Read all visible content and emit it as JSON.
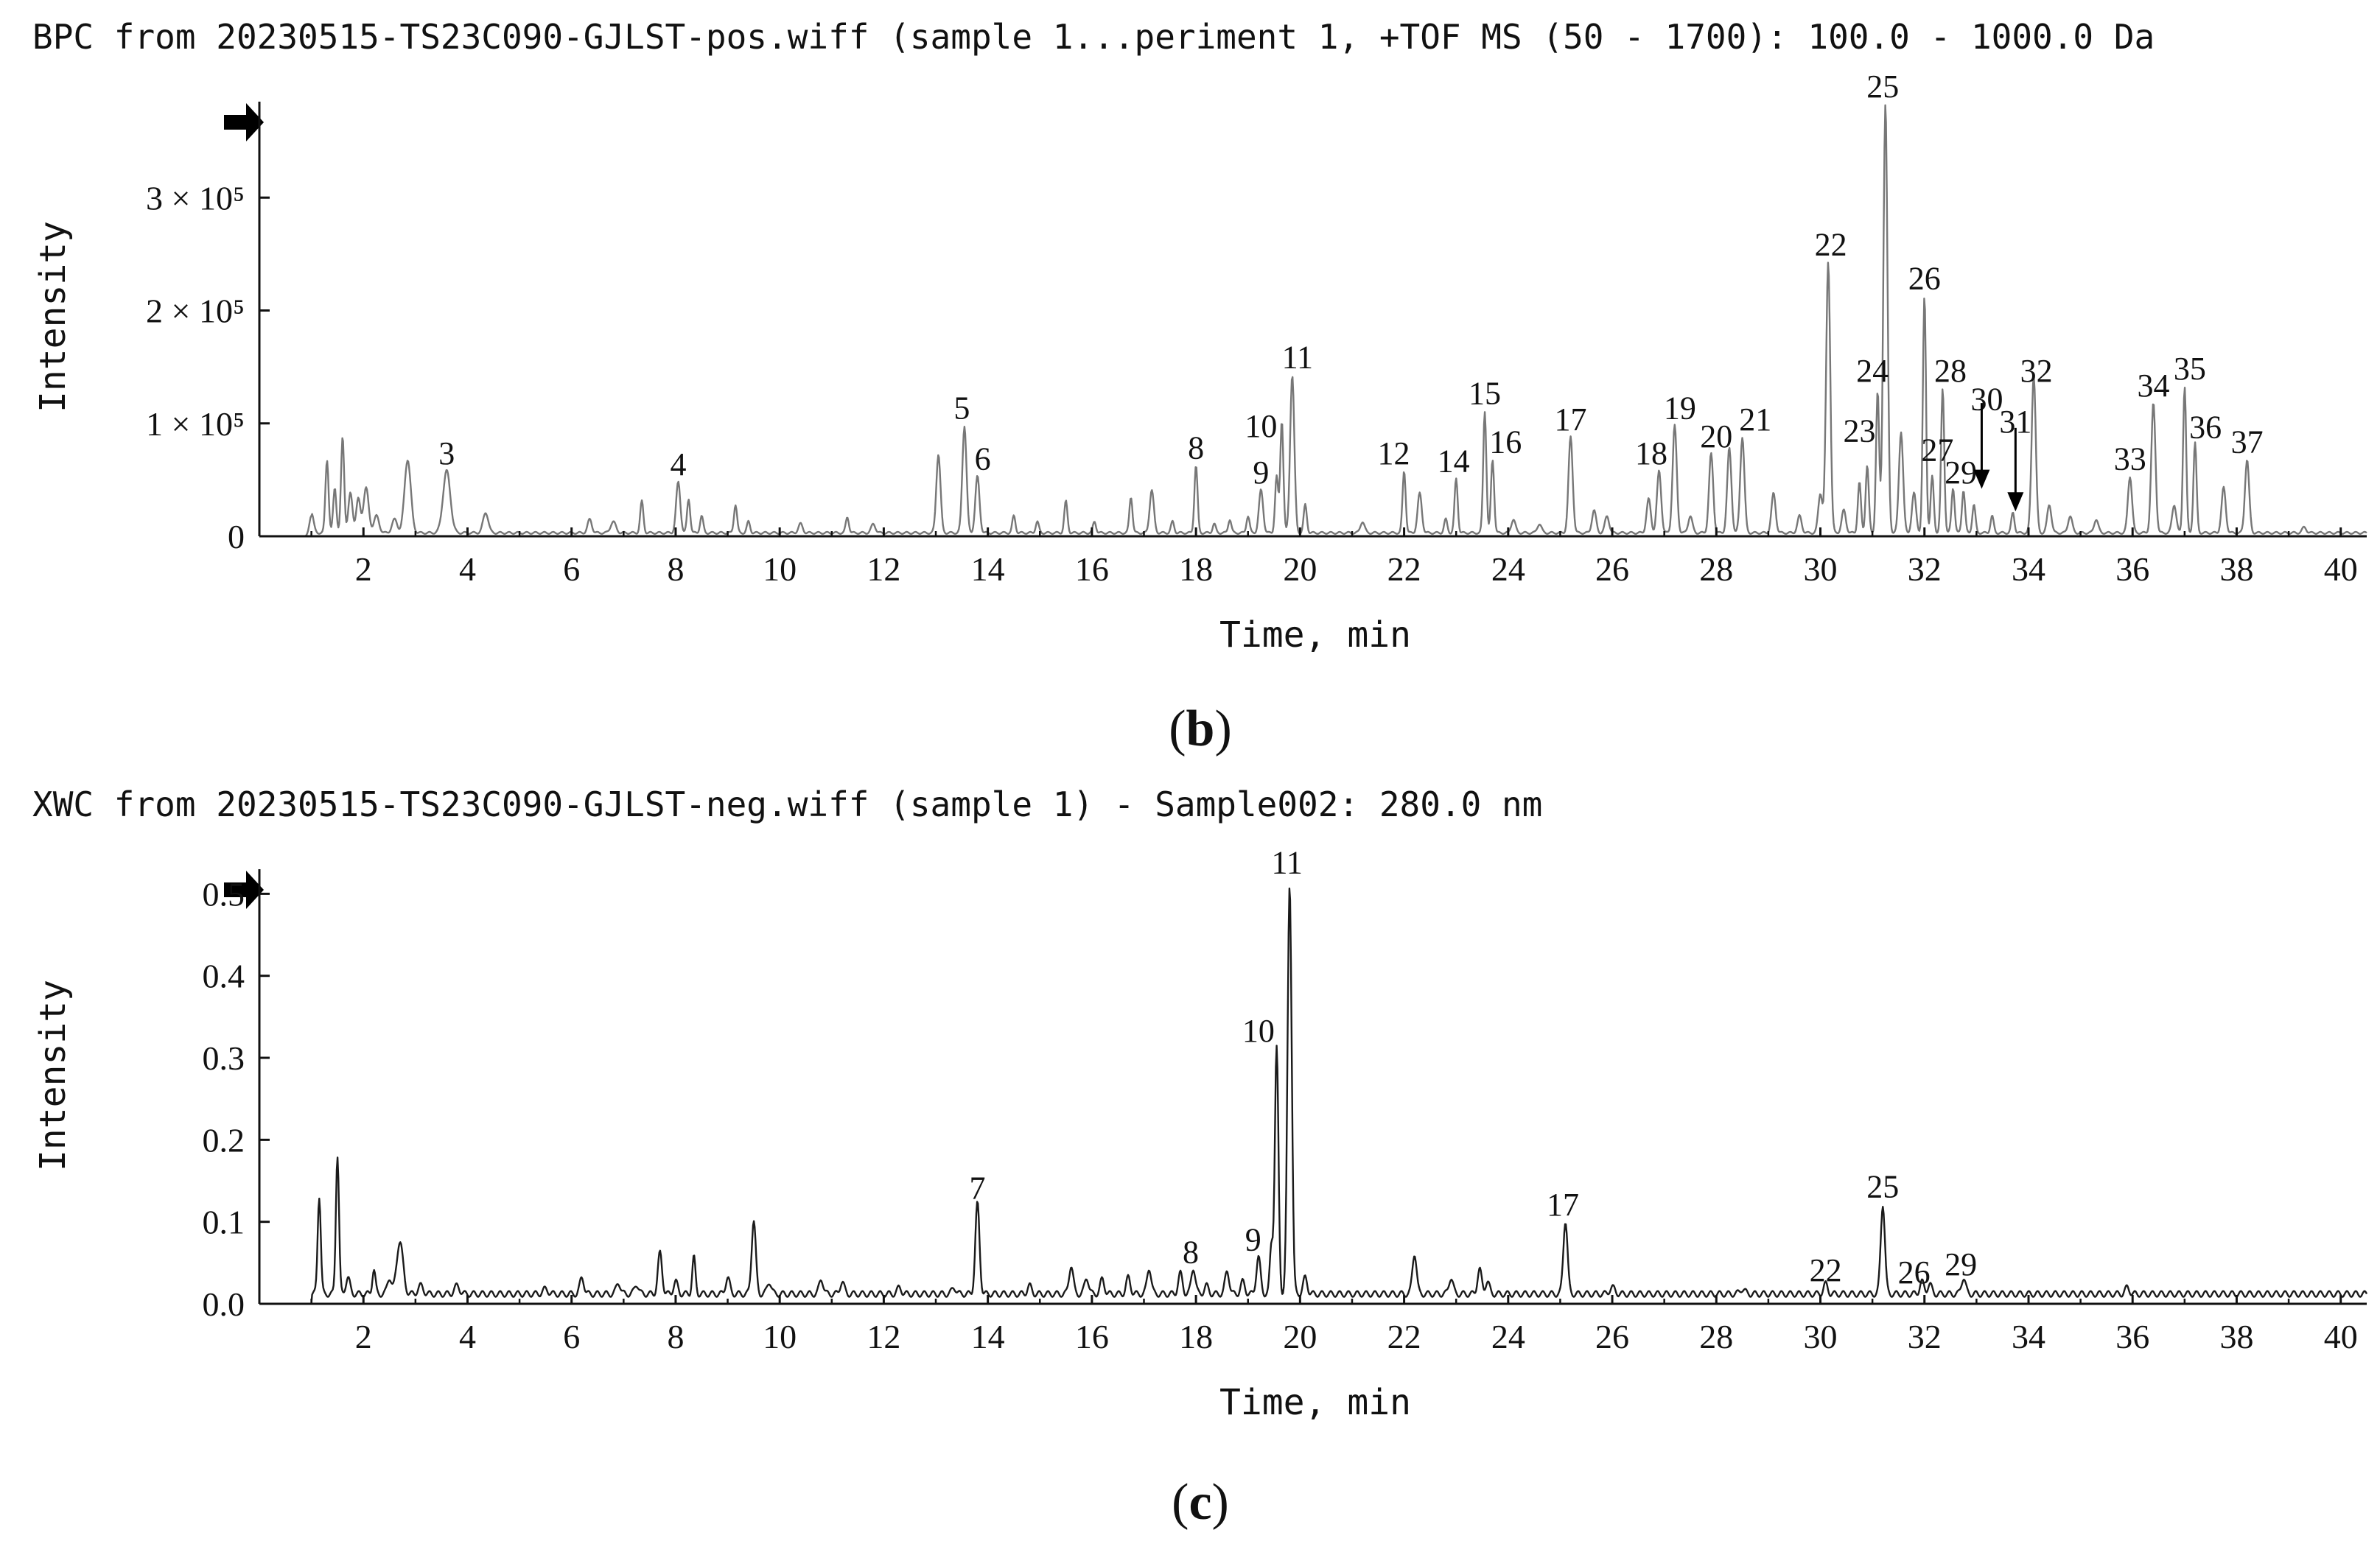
{
  "chart_data": [
    {
      "type": "line",
      "header": "BPC from 20230515-TS23C090-GJLST-pos.wiff (sample 1...periment 1, +TOF MS (50 - 1700): 100.0 - 1000.0 Da",
      "panel_label_open": "(",
      "panel_label_letter": "b",
      "panel_label_close": ")",
      "xlabel": "Time, min",
      "ylabel": "Intensity",
      "xlim": [
        0,
        40.5
      ],
      "ylim": [
        0,
        385000
      ],
      "x_ticks": [
        2,
        4,
        6,
        8,
        10,
        12,
        14,
        16,
        18,
        20,
        22,
        24,
        26,
        28,
        30,
        32,
        34,
        36,
        38,
        40
      ],
      "x_tick_labels": [
        "2",
        "4",
        "6",
        "8",
        "10",
        "12",
        "14",
        "16",
        "18",
        "20",
        "22",
        "24",
        "26",
        "28",
        "30",
        "32",
        "34",
        "36",
        "38",
        "40"
      ],
      "y_ticks": [
        {
          "value": 0,
          "label": "0"
        },
        {
          "value": 100000,
          "label": "1 × 10⁵"
        },
        {
          "value": 200000,
          "label": "2 × 10⁵"
        },
        {
          "value": 300000,
          "label": "3 × 10⁵"
        }
      ],
      "baseline": 3000,
      "peaks": [
        [
          1.0,
          18000,
          0.04
        ],
        [
          1.3,
          65000,
          0.03
        ],
        [
          1.45,
          40000,
          0.03
        ],
        [
          1.6,
          85000,
          0.03
        ],
        [
          1.75,
          35000,
          0.04
        ],
        [
          1.9,
          30000,
          0.04
        ],
        [
          2.05,
          40000,
          0.05
        ],
        [
          2.25,
          15000,
          0.05
        ],
        [
          2.6,
          12000,
          0.05
        ],
        [
          2.85,
          65000,
          0.06
        ],
        [
          3.6,
          55000,
          0.07
        ],
        [
          4.35,
          18000,
          0.05
        ],
        [
          6.35,
          12000,
          0.04
        ],
        [
          6.8,
          10000,
          0.05
        ],
        [
          7.35,
          28000,
          0.03
        ],
        [
          8.05,
          45000,
          0.04
        ],
        [
          8.25,
          30000,
          0.03
        ],
        [
          8.5,
          15000,
          0.03
        ],
        [
          9.15,
          25000,
          0.03
        ],
        [
          9.4,
          10000,
          0.03
        ],
        [
          10.4,
          8000,
          0.04
        ],
        [
          11.3,
          14000,
          0.03
        ],
        [
          11.8,
          8000,
          0.04
        ],
        [
          13.05,
          70000,
          0.04
        ],
        [
          13.55,
          95000,
          0.04
        ],
        [
          13.8,
          50000,
          0.04
        ],
        [
          14.5,
          15000,
          0.03
        ],
        [
          14.95,
          10000,
          0.03
        ],
        [
          15.5,
          28000,
          0.03
        ],
        [
          16.05,
          10000,
          0.03
        ],
        [
          16.75,
          32000,
          0.03
        ],
        [
          17.15,
          38000,
          0.04
        ],
        [
          17.55,
          10000,
          0.03
        ],
        [
          18.0,
          60000,
          0.03
        ],
        [
          18.35,
          8000,
          0.03
        ],
        [
          18.65,
          12000,
          0.03
        ],
        [
          19.0,
          15000,
          0.03
        ],
        [
          19.25,
          38000,
          0.04
        ],
        [
          19.55,
          50000,
          0.03
        ],
        [
          19.65,
          100000,
          0.03
        ],
        [
          19.85,
          140000,
          0.04
        ],
        [
          20.1,
          25000,
          0.03
        ],
        [
          21.2,
          10000,
          0.04
        ],
        [
          22.0,
          55000,
          0.03
        ],
        [
          22.3,
          35000,
          0.04
        ],
        [
          22.8,
          12000,
          0.03
        ],
        [
          23.0,
          48000,
          0.03
        ],
        [
          23.55,
          108000,
          0.03
        ],
        [
          23.7,
          65000,
          0.03
        ],
        [
          24.1,
          12000,
          0.04
        ],
        [
          24.6,
          8000,
          0.04
        ],
        [
          25.2,
          85000,
          0.04
        ],
        [
          25.65,
          20000,
          0.04
        ],
        [
          25.9,
          15000,
          0.04
        ],
        [
          26.7,
          30000,
          0.04
        ],
        [
          26.9,
          55000,
          0.04
        ],
        [
          27.2,
          95000,
          0.04
        ],
        [
          27.5,
          15000,
          0.04
        ],
        [
          27.9,
          70000,
          0.04
        ],
        [
          28.25,
          75000,
          0.04
        ],
        [
          28.5,
          85000,
          0.04
        ],
        [
          29.1,
          35000,
          0.04
        ],
        [
          29.6,
          15000,
          0.04
        ],
        [
          30.0,
          35000,
          0.04
        ],
        [
          30.15,
          240000,
          0.04
        ],
        [
          30.45,
          20000,
          0.04
        ],
        [
          30.75,
          45000,
          0.03
        ],
        [
          30.9,
          60000,
          0.03
        ],
        [
          31.1,
          125000,
          0.03
        ],
        [
          31.25,
          380000,
          0.04
        ],
        [
          31.55,
          90000,
          0.04
        ],
        [
          31.8,
          35000,
          0.04
        ],
        [
          32.0,
          210000,
          0.03
        ],
        [
          32.15,
          50000,
          0.03
        ],
        [
          32.35,
          128000,
          0.03
        ],
        [
          32.55,
          40000,
          0.03
        ],
        [
          32.75,
          38000,
          0.03
        ],
        [
          32.95,
          25000,
          0.03
        ],
        [
          33.3,
          15000,
          0.03
        ],
        [
          33.7,
          18000,
          0.03
        ],
        [
          34.1,
          140000,
          0.04
        ],
        [
          34.4,
          25000,
          0.04
        ],
        [
          34.8,
          15000,
          0.04
        ],
        [
          35.3,
          12000,
          0.04
        ],
        [
          35.95,
          50000,
          0.04
        ],
        [
          36.4,
          115000,
          0.04
        ],
        [
          36.8,
          25000,
          0.04
        ],
        [
          37.0,
          130000,
          0.03
        ],
        [
          37.2,
          80000,
          0.03
        ],
        [
          37.75,
          40000,
          0.04
        ],
        [
          38.2,
          65000,
          0.04
        ],
        [
          39.3,
          5000,
          0.04
        ]
      ],
      "annotations": [
        {
          "label": "3",
          "x": 3.6,
          "y": 64000
        },
        {
          "label": "4",
          "x": 8.05,
          "y": 54000
        },
        {
          "label": "5",
          "x": 13.5,
          "y": 104000
        },
        {
          "label": "6",
          "x": 13.9,
          "y": 59000
        },
        {
          "label": "8",
          "x": 18.0,
          "y": 69000
        },
        {
          "label": "9",
          "x": 19.25,
          "y": 47000
        },
        {
          "label": "10",
          "x": 19.25,
          "y": 88000
        },
        {
          "label": "11",
          "x": 19.95,
          "y": 149000
        },
        {
          "label": "12",
          "x": 21.8,
          "y": 64000
        },
        {
          "label": "14",
          "x": 22.95,
          "y": 57000
        },
        {
          "label": "15",
          "x": 23.55,
          "y": 117000
        },
        {
          "label": "16",
          "x": 23.95,
          "y": 74000
        },
        {
          "label": "17",
          "x": 25.2,
          "y": 94000
        },
        {
          "label": "18",
          "x": 26.75,
          "y": 64000
        },
        {
          "label": "19",
          "x": 27.3,
          "y": 104000
        },
        {
          "label": "20",
          "x": 28.0,
          "y": 79000
        },
        {
          "label": "21",
          "x": 28.75,
          "y": 94000
        },
        {
          "label": "22",
          "x": 30.2,
          "y": 249000
        },
        {
          "label": "23",
          "x": 30.75,
          "y": 84000
        },
        {
          "label": "24",
          "x": 31.0,
          "y": 137000
        },
        {
          "label": "25",
          "x": 31.2,
          "y": 389000
        },
        {
          "label": "26",
          "x": 32.0,
          "y": 219000
        },
        {
          "label": "27",
          "x": 32.25,
          "y": 67000
        },
        {
          "label": "28",
          "x": 32.5,
          "y": 137000
        },
        {
          "label": "29",
          "x": 32.7,
          "y": 47000
        },
        {
          "label": "30",
          "x": 33.2,
          "y": 112000
        },
        {
          "label": "31",
          "x": 33.75,
          "y": 92000
        },
        {
          "label": "32",
          "x": 34.15,
          "y": 137000
        },
        {
          "label": "33",
          "x": 35.95,
          "y": 59000
        },
        {
          "label": "34",
          "x": 36.4,
          "y": 124000
        },
        {
          "label": "35",
          "x": 37.1,
          "y": 139000
        },
        {
          "label": "36",
          "x": 37.4,
          "y": 87000
        },
        {
          "label": "37",
          "x": 38.2,
          "y": 74000
        }
      ],
      "arrows": [
        {
          "x": 33.1,
          "y_from": 118000,
          "y_to": 42000
        },
        {
          "x": 33.75,
          "y_from": 96000,
          "y_to": 22000
        }
      ]
    },
    {
      "type": "line",
      "header": "XWC from 20230515-TS23C090-GJLST-neg.wiff (sample 1) - Sample002: 280.0 nm",
      "panel_label_open": "(",
      "panel_label_letter": "c",
      "panel_label_close": ")",
      "xlabel": "Time, min",
      "ylabel": "Intensity",
      "xlim": [
        0,
        40.5
      ],
      "ylim": [
        0,
        0.53
      ],
      "x_ticks": [
        2,
        4,
        6,
        8,
        10,
        12,
        14,
        16,
        18,
        20,
        22,
        24,
        26,
        28,
        30,
        32,
        34,
        36,
        38,
        40
      ],
      "x_tick_labels": [
        "2",
        "4",
        "6",
        "8",
        "10",
        "12",
        "14",
        "16",
        "18",
        "20",
        "22",
        "24",
        "26",
        "28",
        "30",
        "32",
        "34",
        "36",
        "38",
        "40"
      ],
      "y_ticks": [
        {
          "value": 0.0,
          "label": "0.0"
        },
        {
          "value": 0.1,
          "label": "0.1"
        },
        {
          "value": 0.2,
          "label": "0.2"
        },
        {
          "value": 0.3,
          "label": "0.3"
        },
        {
          "value": 0.4,
          "label": "0.4"
        },
        {
          "value": 0.5,
          "label": "0.5"
        }
      ],
      "baseline": 0.012,
      "peaks": [
        [
          1.15,
          0.12,
          0.03
        ],
        [
          1.5,
          0.17,
          0.03
        ],
        [
          1.7,
          0.02,
          0.04
        ],
        [
          2.2,
          0.03,
          0.03
        ],
        [
          2.5,
          0.02,
          0.04
        ],
        [
          2.7,
          0.065,
          0.06
        ],
        [
          3.1,
          0.01,
          0.05
        ],
        [
          3.8,
          0.01,
          0.05
        ],
        [
          5.5,
          0.006,
          0.05
        ],
        [
          6.2,
          0.02,
          0.04
        ],
        [
          6.9,
          0.014,
          0.04
        ],
        [
          7.25,
          0.012,
          0.04
        ],
        [
          7.7,
          0.05,
          0.04
        ],
        [
          8.0,
          0.015,
          0.04
        ],
        [
          8.35,
          0.045,
          0.03
        ],
        [
          9.0,
          0.02,
          0.04
        ],
        [
          9.5,
          0.09,
          0.04
        ],
        [
          9.8,
          0.015,
          0.04
        ],
        [
          10.8,
          0.018,
          0.04
        ],
        [
          11.2,
          0.015,
          0.04
        ],
        [
          12.3,
          0.008,
          0.04
        ],
        [
          13.35,
          0.008,
          0.04
        ],
        [
          13.8,
          0.11,
          0.04
        ],
        [
          14.8,
          0.01,
          0.04
        ],
        [
          15.6,
          0.035,
          0.04
        ],
        [
          15.9,
          0.02,
          0.04
        ],
        [
          16.2,
          0.018,
          0.04
        ],
        [
          16.7,
          0.02,
          0.04
        ],
        [
          17.1,
          0.032,
          0.04
        ],
        [
          17.7,
          0.025,
          0.04
        ],
        [
          17.95,
          0.032,
          0.04
        ],
        [
          18.2,
          0.01,
          0.04
        ],
        [
          18.6,
          0.028,
          0.04
        ],
        [
          18.9,
          0.015,
          0.04
        ],
        [
          19.2,
          0.045,
          0.04
        ],
        [
          19.45,
          0.06,
          0.03
        ],
        [
          19.55,
          0.3,
          0.035
        ],
        [
          19.8,
          0.5,
          0.04
        ],
        [
          20.1,
          0.02,
          0.04
        ],
        [
          22.2,
          0.05,
          0.04
        ],
        [
          22.9,
          0.02,
          0.04
        ],
        [
          23.45,
          0.03,
          0.04
        ],
        [
          23.6,
          0.015,
          0.04
        ],
        [
          25.1,
          0.09,
          0.04
        ],
        [
          26.0,
          0.008,
          0.05
        ],
        [
          28.5,
          0.006,
          0.05
        ],
        [
          30.1,
          0.012,
          0.04
        ],
        [
          31.2,
          0.11,
          0.04
        ],
        [
          31.95,
          0.015,
          0.04
        ],
        [
          32.1,
          0.012,
          0.04
        ],
        [
          32.75,
          0.02,
          0.04
        ],
        [
          35.9,
          0.008,
          0.04
        ]
      ],
      "annotations": [
        {
          "label": "7",
          "x": 13.8,
          "y": 0.128
        },
        {
          "label": "8",
          "x": 17.9,
          "y": 0.05
        },
        {
          "label": "9",
          "x": 19.1,
          "y": 0.065
        },
        {
          "label": "10",
          "x": 19.2,
          "y": 0.32
        },
        {
          "label": "11",
          "x": 19.75,
          "y": 0.525
        },
        {
          "label": "17",
          "x": 25.05,
          "y": 0.108
        },
        {
          "label": "22",
          "x": 30.1,
          "y": 0.028
        },
        {
          "label": "25",
          "x": 31.2,
          "y": 0.13
        },
        {
          "label": "26",
          "x": 31.8,
          "y": 0.025
        },
        {
          "label": "29",
          "x": 32.7,
          "y": 0.035
        }
      ],
      "arrows": []
    }
  ]
}
